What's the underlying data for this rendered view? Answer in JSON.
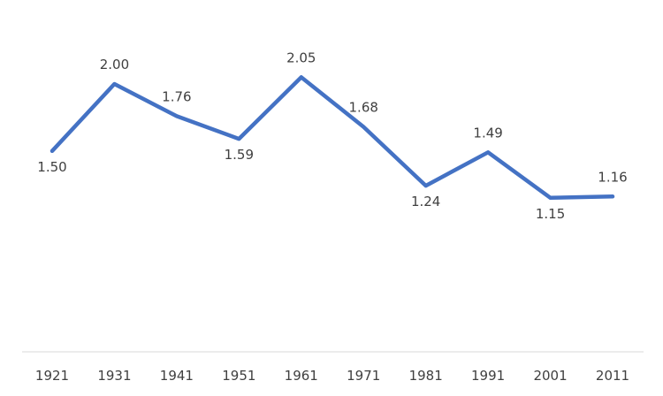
{
  "chart_data": {
    "type": "line",
    "title": "",
    "xlabel": "",
    "ylabel": "",
    "categories": [
      "1921",
      "1931",
      "1941",
      "1951",
      "1961",
      "1971",
      "1981",
      "1991",
      "2001",
      "2011"
    ],
    "series": [
      {
        "values": [
          1.5,
          2.0,
          1.76,
          1.59,
          2.05,
          1.68,
          1.24,
          1.49,
          1.15,
          1.16
        ],
        "data_labels": [
          "1.50",
          "2.00",
          "1.76",
          "1.59",
          "2.05",
          "1.68",
          "1.24",
          "1.49",
          "1.15",
          "1.16"
        ],
        "color": "#4472c4"
      }
    ],
    "ylim": [
      0,
      2.5
    ],
    "grid": false,
    "legend": "none",
    "axis_line_color": "#d9d9d9",
    "text_color": "#404040"
  }
}
